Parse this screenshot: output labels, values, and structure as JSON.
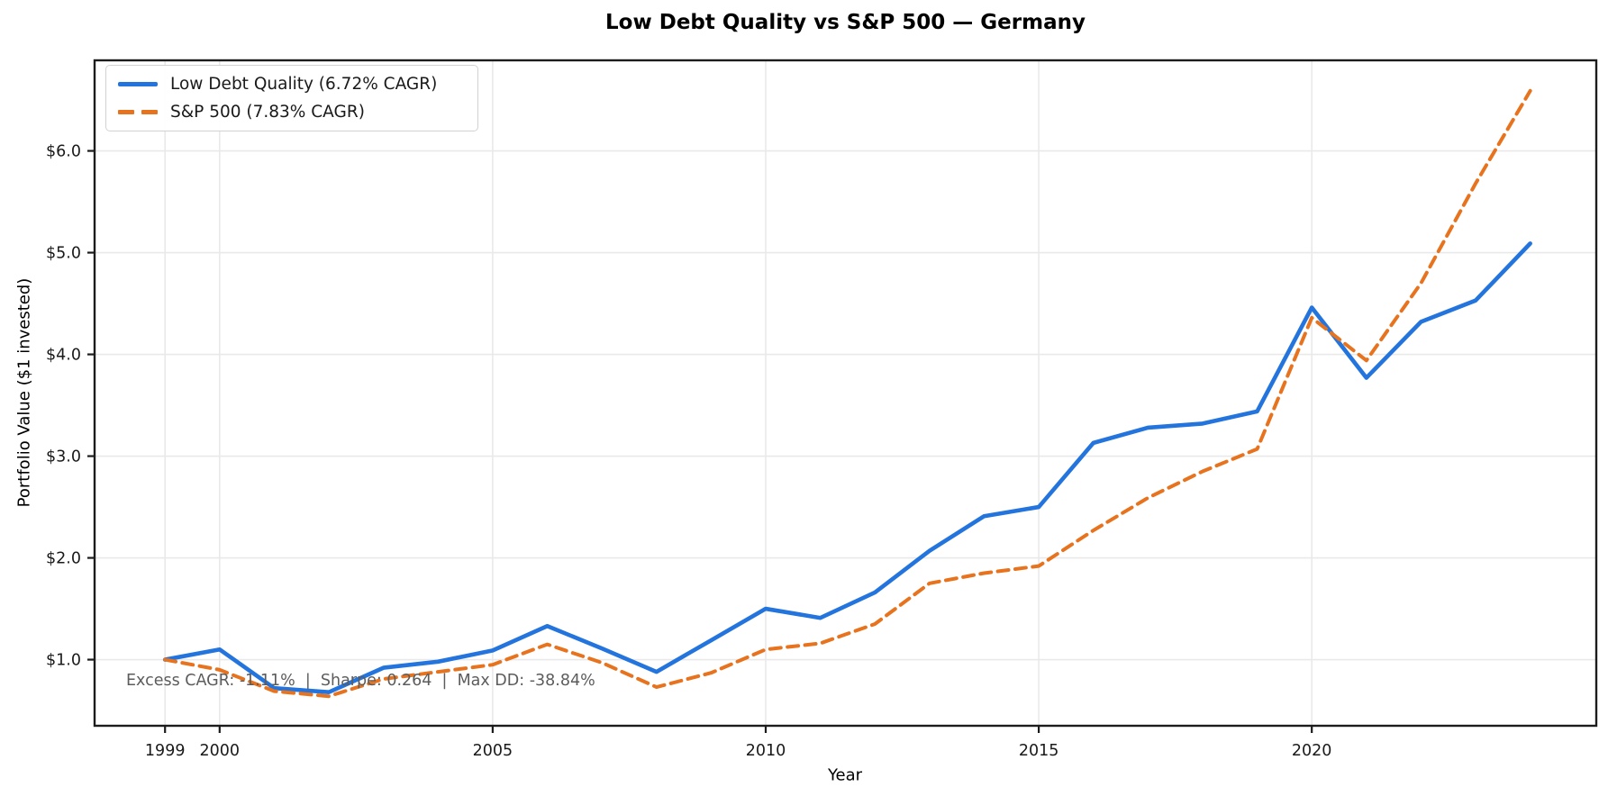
{
  "chart_data": {
    "type": "line",
    "title": "Low Debt Quality vs S&P 500 — Germany",
    "xlabel": "Year",
    "ylabel": "Portfolio Value ($1 invested)",
    "x": [
      1999,
      2000,
      2001,
      2002,
      2003,
      2004,
      2005,
      2006,
      2007,
      2008,
      2009,
      2010,
      2011,
      2012,
      2013,
      2014,
      2015,
      2016,
      2017,
      2018,
      2019,
      2020,
      2021,
      2022,
      2023,
      2024
    ],
    "series": [
      {
        "name": "Low Debt Quality (6.72% CAGR)",
        "color": "#2374dd",
        "style": "solid",
        "values": [
          1.0,
          1.1,
          0.72,
          0.68,
          0.92,
          0.98,
          1.09,
          1.33,
          1.11,
          0.88,
          1.19,
          1.5,
          1.41,
          1.66,
          2.07,
          2.41,
          2.5,
          3.13,
          3.28,
          3.32,
          3.44,
          4.46,
          3.77,
          4.32,
          4.53,
          5.09
        ]
      },
      {
        "name": "S&P 500 (7.83% CAGR)",
        "color": "#e7731e",
        "style": "dashed",
        "values": [
          1.0,
          0.9,
          0.69,
          0.64,
          0.81,
          0.88,
          0.95,
          1.15,
          0.97,
          0.73,
          0.87,
          1.1,
          1.16,
          1.35,
          1.75,
          1.85,
          1.92,
          2.27,
          2.59,
          2.85,
          3.07,
          4.36,
          3.94,
          4.7,
          5.68,
          6.59
        ]
      }
    ],
    "x_ticks": {
      "values": [
        1999,
        2000,
        2005,
        2010,
        2015,
        2020
      ],
      "labels": [
        "1999",
        "2000",
        "2005",
        "2010",
        "2015",
        "2020"
      ]
    },
    "y_ticks": {
      "values": [
        1,
        2,
        3,
        4,
        5,
        6
      ],
      "labels": [
        "$1.0",
        "$2.0",
        "$3.0",
        "$4.0",
        "$5.0",
        "$6.0"
      ]
    },
    "xlim": [
      1997.71,
      2025.21
    ],
    "ylim": [
      0.35,
      6.89
    ],
    "grid": true,
    "legend_position": "upper left",
    "annotation": "Excess CAGR: -1.11%  |  Sharpe: 0.264  |  Max DD: -38.84%",
    "colors": {
      "grid": "#e9e9e9",
      "spine": "#1c1c1c",
      "tick_label": "#1a1a1a",
      "annotation_text": "#5c5c5c",
      "background": "#ffffff"
    }
  }
}
